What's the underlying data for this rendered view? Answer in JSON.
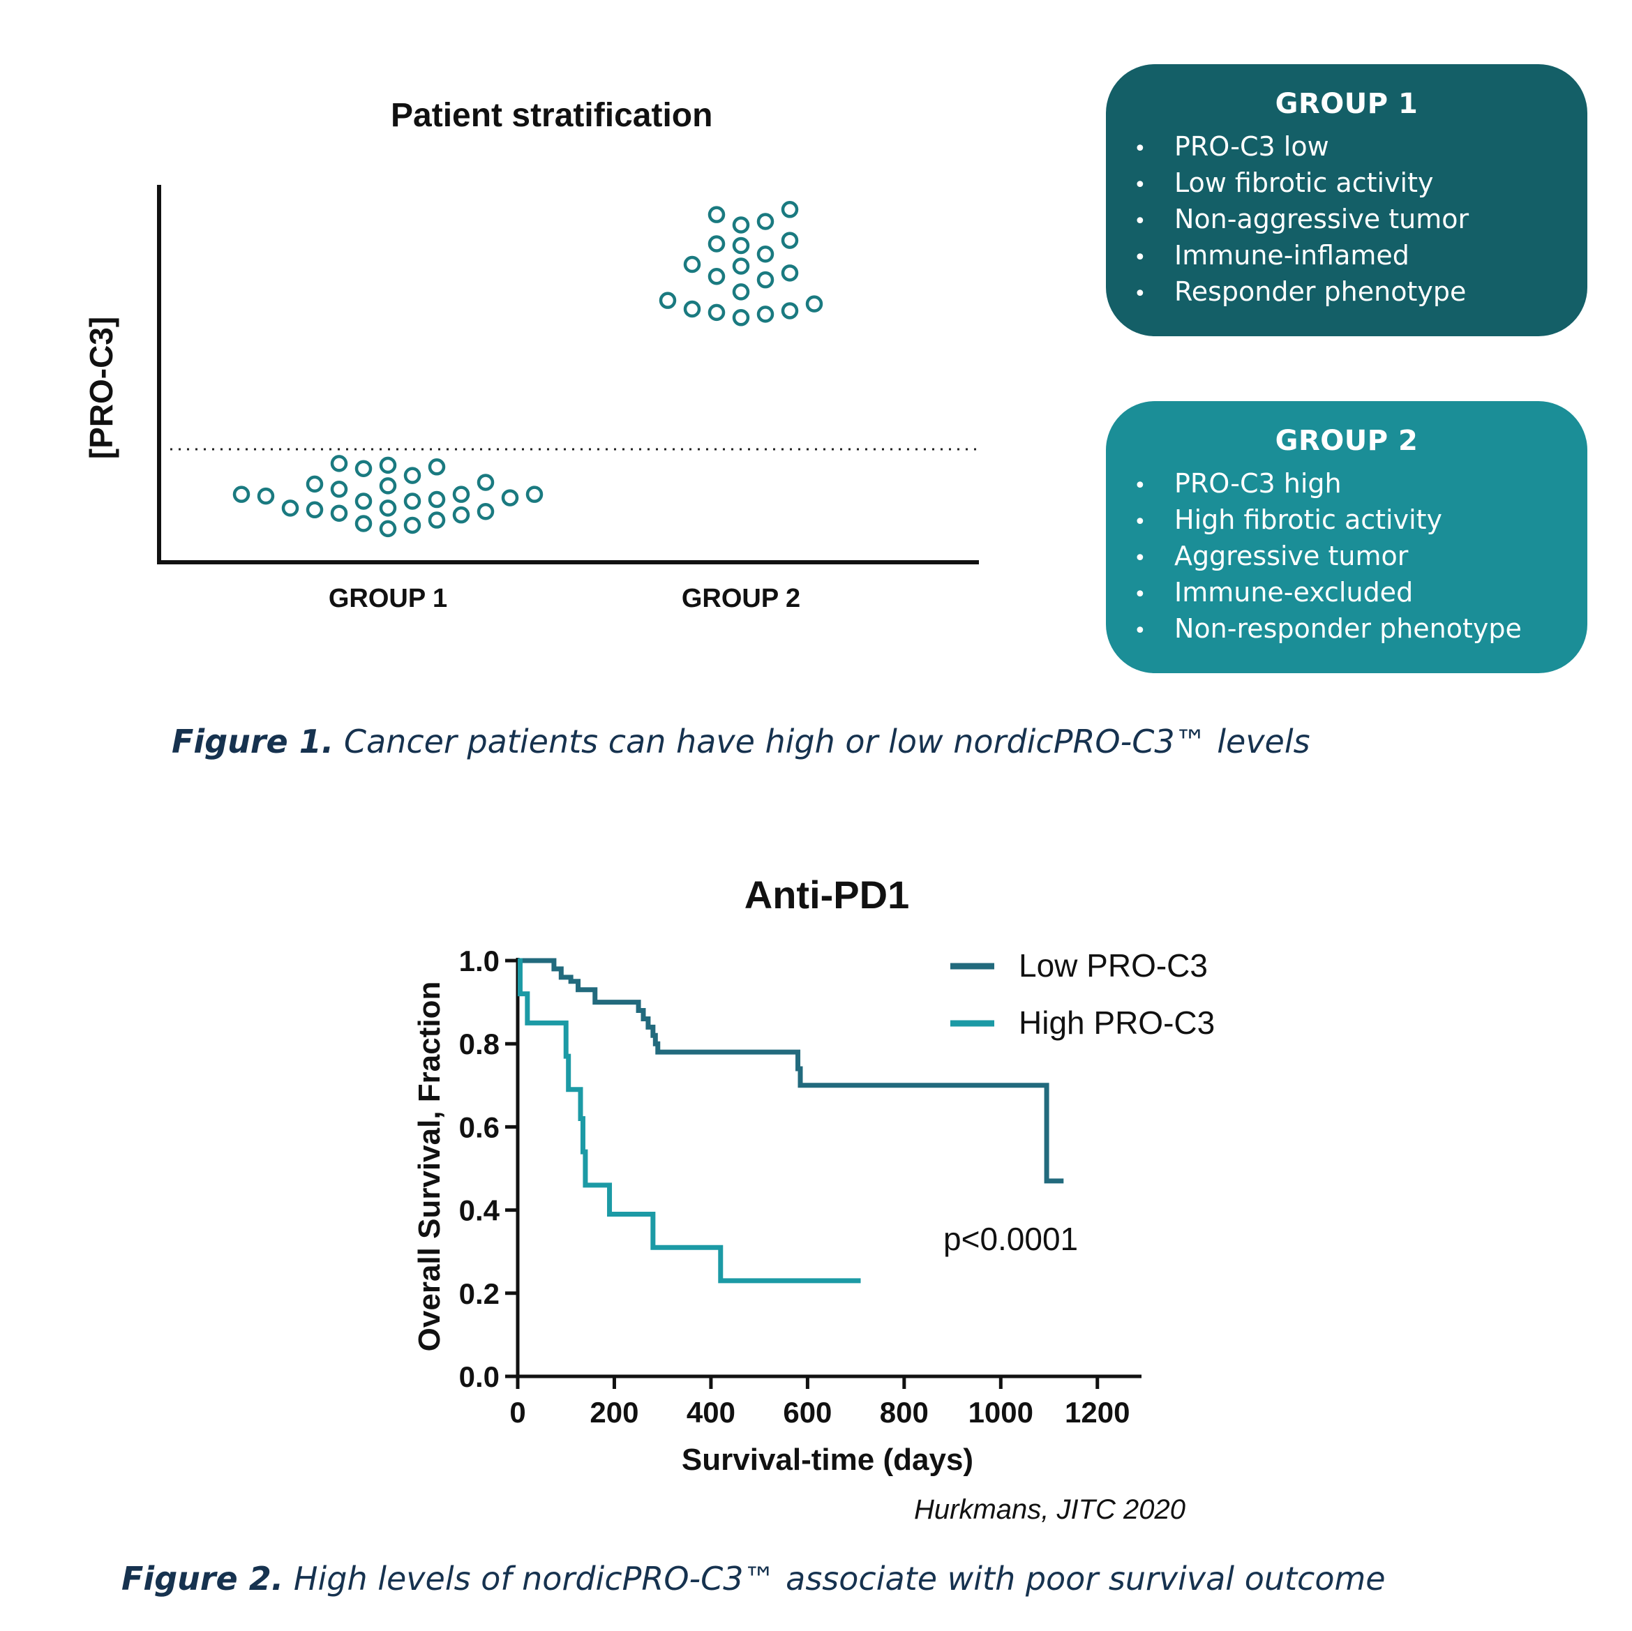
{
  "figure1": {
    "chart_data": {
      "type": "scatter",
      "title": "Patient stratification",
      "ylabel": "[PRO-C3]",
      "categories": [
        "GROUP 1",
        "GROUP 2"
      ],
      "threshold_line": "dotted",
      "color": "#1a7a80",
      "series": [
        {
          "category": "GROUP 1",
          "values": [
            0.09,
            0.11,
            0.12,
            0.14,
            0.18,
            0.17,
            0.2,
            0.21,
            0.19,
            0.21,
            0.25,
            0.25,
            0.26,
            0.27,
            0.28,
            0.29,
            0.29,
            0.29,
            0.32,
            0.34,
            0.35,
            0.36,
            0.4,
            0.44,
            0.45,
            0.46,
            0.47
          ]
        },
        {
          "category": "GROUP 2",
          "values": [
            1.32,
            1.34,
            1.35,
            1.36,
            1.37,
            1.4,
            1.42,
            1.47,
            1.54,
            1.56,
            1.58,
            1.62,
            1.63,
            1.69,
            1.74,
            1.75,
            1.77,
            1.86,
            1.88,
            1.92,
            1.95
          ]
        }
      ]
    },
    "caption_label": "Figure 1.",
    "caption_text": " Cancer patients can have high or low nordicPRO-C3™ levels"
  },
  "boxes": [
    {
      "title": "GROUP 1",
      "color": "#145f67",
      "items": [
        "PRO-C3 low",
        "Low fibrotic activity",
        "Non-aggressive tumor",
        "Immune-inflamed",
        "Responder phenotype"
      ]
    },
    {
      "title": "GROUP 2",
      "color": "#1b8e97",
      "items": [
        "PRO-C3 high",
        "High fibrotic activity",
        "Aggressive tumor",
        "Immune-excluded",
        "Non-responder phenotype"
      ]
    }
  ],
  "bullet_char": "•",
  "figure2": {
    "chart_data": {
      "type": "line",
      "step": true,
      "title": "Anti-PD1",
      "xlabel": "Survival-time (days)",
      "ylabel": "Overall Survival, Fraction",
      "xlim": [
        0,
        1300
      ],
      "ylim": [
        0,
        1.0
      ],
      "xticks": [
        0,
        200,
        400,
        600,
        800,
        1000,
        1200
      ],
      "yticks": [
        "0.0",
        "0.2",
        "0.4",
        "0.6",
        "0.8",
        "1.0"
      ],
      "annotation": "p<0.0001",
      "legend_position": "top-right",
      "series": [
        {
          "name": "Low PRO-C3",
          "color": "#226a7d",
          "x": [
            0,
            75,
            90,
            110,
            125,
            160,
            250,
            255,
            260,
            270,
            280,
            285,
            290,
            400,
            575,
            580,
            585,
            1090,
            1095,
            1130
          ],
          "y": [
            1.0,
            0.98,
            0.96,
            0.95,
            0.93,
            0.9,
            0.88,
            0.88,
            0.86,
            0.84,
            0.82,
            0.8,
            0.78,
            0.78,
            0.78,
            0.74,
            0.7,
            0.7,
            0.47,
            0.47
          ]
        },
        {
          "name": "High PRO-C3",
          "color": "#1c9aa5",
          "x": [
            0,
            5,
            20,
            100,
            105,
            120,
            130,
            135,
            140,
            190,
            280,
            420,
            710
          ],
          "y": [
            1.0,
            0.92,
            0.85,
            0.77,
            0.69,
            0.69,
            0.62,
            0.54,
            0.46,
            0.39,
            0.31,
            0.23,
            0.23
          ]
        }
      ]
    },
    "citation": "Hurkmans, JITC 2020",
    "caption_label": "Figure 2.",
    "caption_text": " High levels of nordicPRO-C3™ associate with poor survival outcome"
  }
}
